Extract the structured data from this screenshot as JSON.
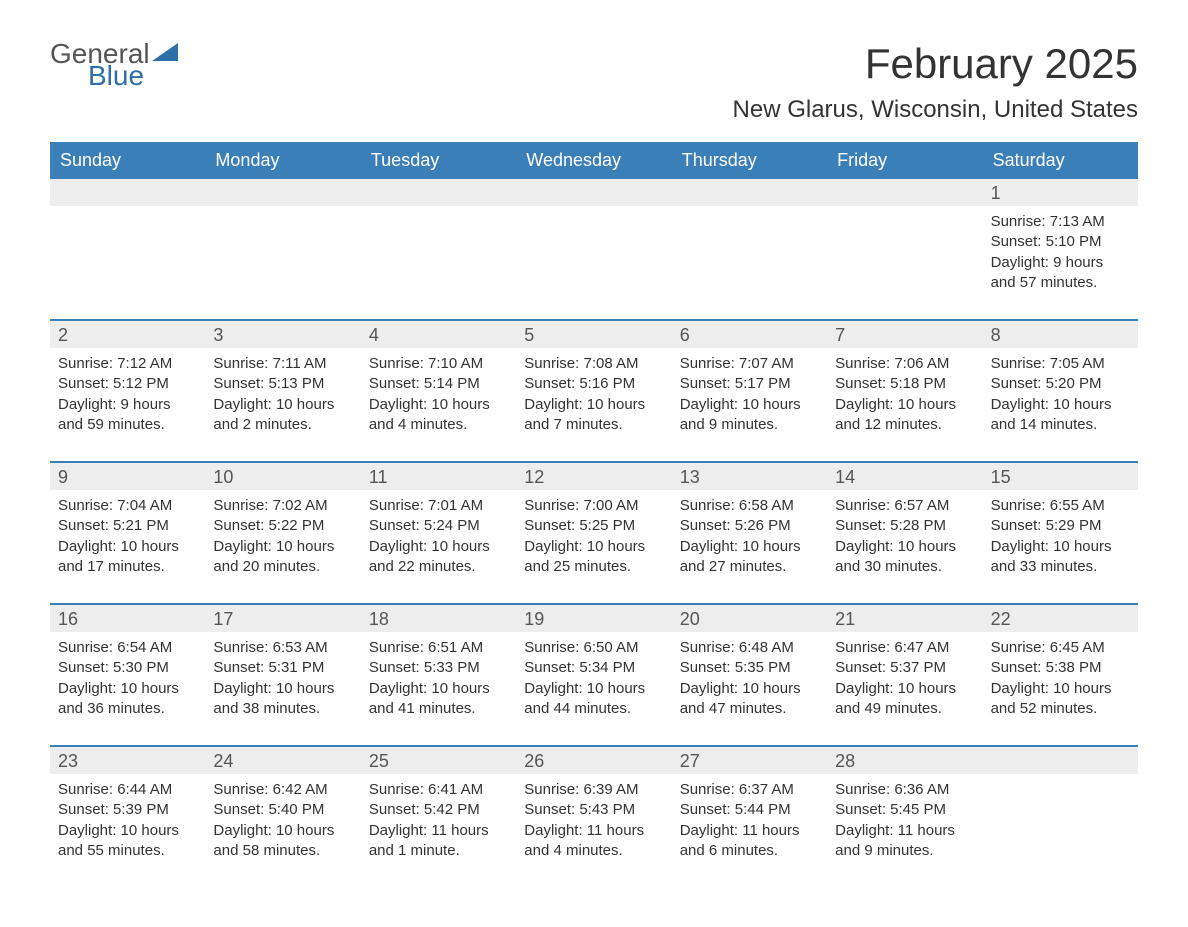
{
  "logo": {
    "word1": "General",
    "word2": "Blue"
  },
  "title": "February 2025",
  "location": "New Glarus, Wisconsin, United States",
  "colors": {
    "header_bg": "#3b7fb8",
    "header_text": "#ffffff",
    "strip_bg": "#ededed",
    "rule": "#3b7fb8",
    "logo_blue": "#2f6fa7",
    "logo_gray": "#555555",
    "body_text": "#333333",
    "page_bg": "#ffffff"
  },
  "days_of_week": [
    "Sunday",
    "Monday",
    "Tuesday",
    "Wednesday",
    "Thursday",
    "Friday",
    "Saturday"
  ],
  "weeks": [
    [
      {
        "n": "",
        "sunrise": "",
        "sunset": "",
        "daylight": ""
      },
      {
        "n": "",
        "sunrise": "",
        "sunset": "",
        "daylight": ""
      },
      {
        "n": "",
        "sunrise": "",
        "sunset": "",
        "daylight": ""
      },
      {
        "n": "",
        "sunrise": "",
        "sunset": "",
        "daylight": ""
      },
      {
        "n": "",
        "sunrise": "",
        "sunset": "",
        "daylight": ""
      },
      {
        "n": "",
        "sunrise": "",
        "sunset": "",
        "daylight": ""
      },
      {
        "n": "1",
        "sunrise": "Sunrise: 7:13 AM",
        "sunset": "Sunset: 5:10 PM",
        "daylight": "Daylight: 9 hours and 57 minutes."
      }
    ],
    [
      {
        "n": "2",
        "sunrise": "Sunrise: 7:12 AM",
        "sunset": "Sunset: 5:12 PM",
        "daylight": "Daylight: 9 hours and 59 minutes."
      },
      {
        "n": "3",
        "sunrise": "Sunrise: 7:11 AM",
        "sunset": "Sunset: 5:13 PM",
        "daylight": "Daylight: 10 hours and 2 minutes."
      },
      {
        "n": "4",
        "sunrise": "Sunrise: 7:10 AM",
        "sunset": "Sunset: 5:14 PM",
        "daylight": "Daylight: 10 hours and 4 minutes."
      },
      {
        "n": "5",
        "sunrise": "Sunrise: 7:08 AM",
        "sunset": "Sunset: 5:16 PM",
        "daylight": "Daylight: 10 hours and 7 minutes."
      },
      {
        "n": "6",
        "sunrise": "Sunrise: 7:07 AM",
        "sunset": "Sunset: 5:17 PM",
        "daylight": "Daylight: 10 hours and 9 minutes."
      },
      {
        "n": "7",
        "sunrise": "Sunrise: 7:06 AM",
        "sunset": "Sunset: 5:18 PM",
        "daylight": "Daylight: 10 hours and 12 minutes."
      },
      {
        "n": "8",
        "sunrise": "Sunrise: 7:05 AM",
        "sunset": "Sunset: 5:20 PM",
        "daylight": "Daylight: 10 hours and 14 minutes."
      }
    ],
    [
      {
        "n": "9",
        "sunrise": "Sunrise: 7:04 AM",
        "sunset": "Sunset: 5:21 PM",
        "daylight": "Daylight: 10 hours and 17 minutes."
      },
      {
        "n": "10",
        "sunrise": "Sunrise: 7:02 AM",
        "sunset": "Sunset: 5:22 PM",
        "daylight": "Daylight: 10 hours and 20 minutes."
      },
      {
        "n": "11",
        "sunrise": "Sunrise: 7:01 AM",
        "sunset": "Sunset: 5:24 PM",
        "daylight": "Daylight: 10 hours and 22 minutes."
      },
      {
        "n": "12",
        "sunrise": "Sunrise: 7:00 AM",
        "sunset": "Sunset: 5:25 PM",
        "daylight": "Daylight: 10 hours and 25 minutes."
      },
      {
        "n": "13",
        "sunrise": "Sunrise: 6:58 AM",
        "sunset": "Sunset: 5:26 PM",
        "daylight": "Daylight: 10 hours and 27 minutes."
      },
      {
        "n": "14",
        "sunrise": "Sunrise: 6:57 AM",
        "sunset": "Sunset: 5:28 PM",
        "daylight": "Daylight: 10 hours and 30 minutes."
      },
      {
        "n": "15",
        "sunrise": "Sunrise: 6:55 AM",
        "sunset": "Sunset: 5:29 PM",
        "daylight": "Daylight: 10 hours and 33 minutes."
      }
    ],
    [
      {
        "n": "16",
        "sunrise": "Sunrise: 6:54 AM",
        "sunset": "Sunset: 5:30 PM",
        "daylight": "Daylight: 10 hours and 36 minutes."
      },
      {
        "n": "17",
        "sunrise": "Sunrise: 6:53 AM",
        "sunset": "Sunset: 5:31 PM",
        "daylight": "Daylight: 10 hours and 38 minutes."
      },
      {
        "n": "18",
        "sunrise": "Sunrise: 6:51 AM",
        "sunset": "Sunset: 5:33 PM",
        "daylight": "Daylight: 10 hours and 41 minutes."
      },
      {
        "n": "19",
        "sunrise": "Sunrise: 6:50 AM",
        "sunset": "Sunset: 5:34 PM",
        "daylight": "Daylight: 10 hours and 44 minutes."
      },
      {
        "n": "20",
        "sunrise": "Sunrise: 6:48 AM",
        "sunset": "Sunset: 5:35 PM",
        "daylight": "Daylight: 10 hours and 47 minutes."
      },
      {
        "n": "21",
        "sunrise": "Sunrise: 6:47 AM",
        "sunset": "Sunset: 5:37 PM",
        "daylight": "Daylight: 10 hours and 49 minutes."
      },
      {
        "n": "22",
        "sunrise": "Sunrise: 6:45 AM",
        "sunset": "Sunset: 5:38 PM",
        "daylight": "Daylight: 10 hours and 52 minutes."
      }
    ],
    [
      {
        "n": "23",
        "sunrise": "Sunrise: 6:44 AM",
        "sunset": "Sunset: 5:39 PM",
        "daylight": "Daylight: 10 hours and 55 minutes."
      },
      {
        "n": "24",
        "sunrise": "Sunrise: 6:42 AM",
        "sunset": "Sunset: 5:40 PM",
        "daylight": "Daylight: 10 hours and 58 minutes."
      },
      {
        "n": "25",
        "sunrise": "Sunrise: 6:41 AM",
        "sunset": "Sunset: 5:42 PM",
        "daylight": "Daylight: 11 hours and 1 minute."
      },
      {
        "n": "26",
        "sunrise": "Sunrise: 6:39 AM",
        "sunset": "Sunset: 5:43 PM",
        "daylight": "Daylight: 11 hours and 4 minutes."
      },
      {
        "n": "27",
        "sunrise": "Sunrise: 6:37 AM",
        "sunset": "Sunset: 5:44 PM",
        "daylight": "Daylight: 11 hours and 6 minutes."
      },
      {
        "n": "28",
        "sunrise": "Sunrise: 6:36 AM",
        "sunset": "Sunset: 5:45 PM",
        "daylight": "Daylight: 11 hours and 9 minutes."
      },
      {
        "n": "",
        "sunrise": "",
        "sunset": "",
        "daylight": ""
      }
    ]
  ]
}
